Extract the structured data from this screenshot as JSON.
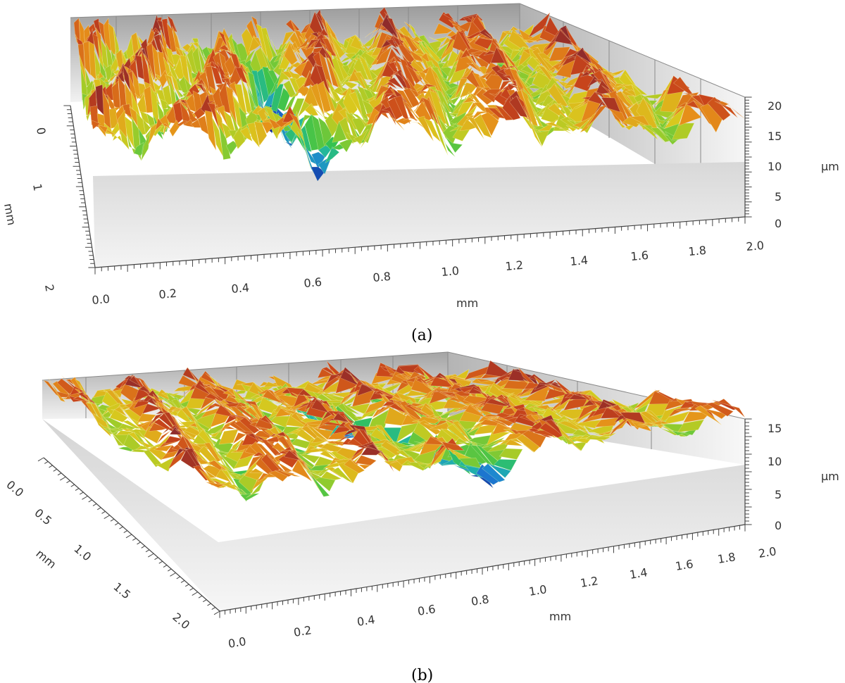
{
  "chart_data": [
    {
      "type": "surface-3d",
      "caption": "(a)",
      "x_axis": {
        "label": "mm",
        "range": [
          0.0,
          2.0
        ],
        "ticks": [
          "0.0",
          "0.2",
          "0.4",
          "0.6",
          "0.8",
          "1.0",
          "1.2",
          "1.4",
          "1.6",
          "1.8",
          "2.0"
        ]
      },
      "y_axis": {
        "label": "mm",
        "range": [
          0,
          2
        ],
        "ticks": [
          "0",
          "1",
          "2"
        ]
      },
      "z_axis": {
        "label": "µm",
        "range": [
          0,
          20
        ],
        "ticks": [
          "0",
          "5",
          "10",
          "15",
          "20"
        ]
      },
      "surface": {
        "description": "rough surface topography",
        "max_height_um": 20,
        "deepest_valley_x_mm": 0.5
      }
    },
    {
      "type": "surface-3d",
      "caption": "(b)",
      "x_axis": {
        "label": "mm",
        "range": [
          0.0,
          2.0
        ],
        "ticks": [
          "0.0",
          "0.2",
          "0.4",
          "0.6",
          "0.8",
          "1.0",
          "1.2",
          "1.4",
          "1.6",
          "1.8",
          "2.0"
        ]
      },
      "y_axis": {
        "label": "mm",
        "range": [
          0.0,
          2.0
        ],
        "ticks": [
          "0.0",
          "0.5",
          "1.0",
          "1.5",
          "2.0"
        ]
      },
      "z_axis": {
        "label": "µm",
        "range": [
          0,
          15
        ],
        "ticks": [
          "0",
          "5",
          "10",
          "15"
        ]
      },
      "surface": {
        "description": "rough surface topography",
        "max_height_um": 15,
        "deepest_valley_x_mm": 0.85
      }
    }
  ],
  "colors": {
    "colormap": [
      "#0b1a8c",
      "#1e7fd6",
      "#1fb5a8",
      "#36c24e",
      "#9ccc2a",
      "#d9c81e",
      "#e6901a",
      "#c8441b",
      "#8f2a2a",
      "#c9b9b9"
    ],
    "wall_dark": "#9a9a9a",
    "wall_light": "#f4f4f4",
    "floor_front": "#e6e6e6",
    "grid_line": "#8a8a8a",
    "axis_line": "#444444"
  }
}
